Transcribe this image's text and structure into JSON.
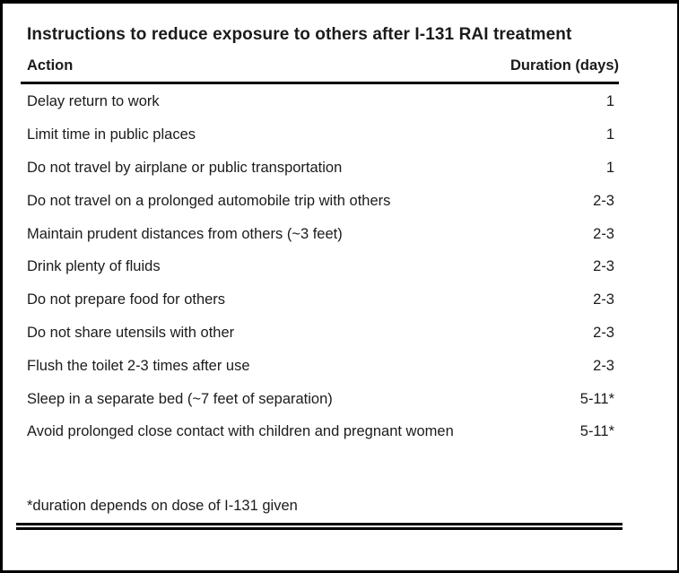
{
  "table": {
    "title": "Instructions to reduce exposure to others after I-131 RAI treatment",
    "columns": {
      "action": "Action",
      "duration": "Duration (days)"
    },
    "rows": [
      {
        "action": "Delay return to work",
        "duration": "1"
      },
      {
        "action": "Limit time in public places",
        "duration": "1"
      },
      {
        "action": "Do not travel by airplane or public transportation",
        "duration": "1"
      },
      {
        "action": "Do not travel on a prolonged automobile trip with others",
        "duration": "2-3"
      },
      {
        "action": "Maintain prudent distances from others (~3 feet)",
        "duration": "2-3"
      },
      {
        "action": "Drink plenty of fluids",
        "duration": "2-3"
      },
      {
        "action": "Do not prepare food for others",
        "duration": "2-3"
      },
      {
        "action": "Do not share utensils with other",
        "duration": "2-3"
      },
      {
        "action": "Flush the toilet 2-3 times after use",
        "duration": "2-3"
      },
      {
        "action": "Sleep in a separate bed (~7 feet of separation)",
        "duration": "5-11*"
      },
      {
        "action": "Avoid prolonged close contact with children and pregnant women",
        "duration": "5-11*"
      }
    ],
    "footnote": "*duration depends on dose of I-131 given"
  },
  "colors": {
    "text": "#1b1b1b",
    "rule": "#000000",
    "background": "#ffffff"
  }
}
